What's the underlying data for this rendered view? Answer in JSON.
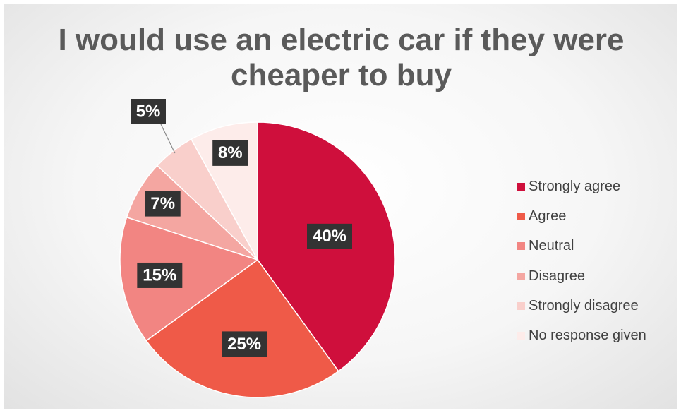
{
  "chart_data": {
    "type": "pie",
    "title": "I would use an electric car if they were cheaper to buy",
    "legend_position": "right",
    "slices": [
      {
        "name": "Strongly agree",
        "value": 40,
        "label": "40%",
        "color": "#cf0f3c"
      },
      {
        "name": "Agree",
        "value": 25,
        "label": "25%",
        "color": "#ef5a48"
      },
      {
        "name": "Neutral",
        "value": 15,
        "label": "15%",
        "color": "#f28582"
      },
      {
        "name": "Disagree",
        "value": 7,
        "label": "7%",
        "color": "#f4a6a1"
      },
      {
        "name": "Strongly disagree",
        "value": 5,
        "label": "5%",
        "color": "#f9cfcb"
      },
      {
        "name": "No response given",
        "value": 8,
        "label": "8%",
        "color": "#fdecea"
      }
    ]
  }
}
